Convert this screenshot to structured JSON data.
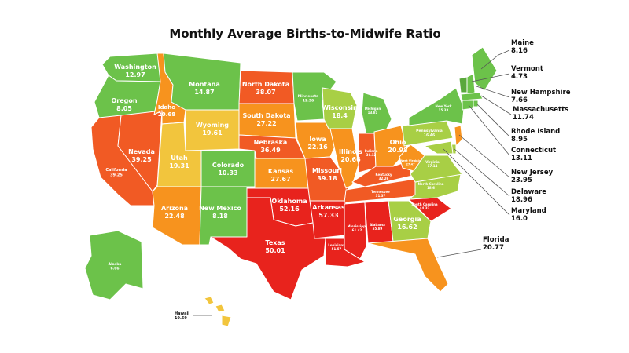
{
  "title": "Monthly Average Births-to-Midwife Ratio",
  "colors": {
    "low": "#6cc24a",
    "midlow": "#a8cf45",
    "mid": "#f2c53d",
    "midhigh": "#f7931e",
    "high": "#f15a24",
    "max": "#e8231d"
  },
  "chart_data": {
    "type": "choropleth",
    "title": "Monthly Average Births-to-Midwife Ratio",
    "states": [
      {
        "name": "Washington",
        "value": "12.97"
      },
      {
        "name": "Oregon",
        "value": "8.05"
      },
      {
        "name": "California",
        "value": "39.25"
      },
      {
        "name": "Nevada",
        "value": "39.25"
      },
      {
        "name": "Idaho",
        "value": "20.68"
      },
      {
        "name": "Montana",
        "value": "14.87"
      },
      {
        "name": "Wyoming",
        "value": "19.61"
      },
      {
        "name": "Utah",
        "value": "19.31"
      },
      {
        "name": "Arizona",
        "value": "22.48"
      },
      {
        "name": "Colorado",
        "value": "10.33"
      },
      {
        "name": "New Mexico",
        "value": "8.18"
      },
      {
        "name": "North Dakota",
        "value": "38.07"
      },
      {
        "name": "South Dakota",
        "value": "27.22"
      },
      {
        "name": "Nebraska",
        "value": "36.49"
      },
      {
        "name": "Kansas",
        "value": "27.67"
      },
      {
        "name": "Oklahoma",
        "value": "52.16"
      },
      {
        "name": "Texas",
        "value": "50.01"
      },
      {
        "name": "Minnesota",
        "value": "12.36"
      },
      {
        "name": "Iowa",
        "value": "22.16"
      },
      {
        "name": "Missouri",
        "value": "39.18"
      },
      {
        "name": "Arkansas",
        "value": "57.33"
      },
      {
        "name": "Louisiana",
        "value": "51.57"
      },
      {
        "name": "Wisconsin",
        "value": "18.4"
      },
      {
        "name": "Illinois",
        "value": "20.66"
      },
      {
        "name": "Michigan",
        "value": "13.81"
      },
      {
        "name": "Indiana",
        "value": "36.12"
      },
      {
        "name": "Ohio",
        "value": "20.98"
      },
      {
        "name": "Kentucky",
        "value": "32.26"
      },
      {
        "name": "Tennessee",
        "value": "31.37"
      },
      {
        "name": "Mississippi",
        "value": "61.42"
      },
      {
        "name": "Alabama",
        "value": "55.89"
      },
      {
        "name": "Georgia",
        "value": "16.62"
      },
      {
        "name": "Florida",
        "value": "20.77"
      },
      {
        "name": "South Carolina",
        "value": "44.32"
      },
      {
        "name": "North Carolina",
        "value": "18.6"
      },
      {
        "name": "Virginia",
        "value": "17.14"
      },
      {
        "name": "West Virginia",
        "value": "27.47"
      },
      {
        "name": "Pennsylvania",
        "value": "16.46"
      },
      {
        "name": "New York",
        "value": "15.33"
      },
      {
        "name": "Maine",
        "value": "8.16"
      },
      {
        "name": "Vermont",
        "value": "4.73"
      },
      {
        "name": "New Hampshire",
        "value": "7.66"
      },
      {
        "name": "Massachusetts",
        "value": "11.74"
      },
      {
        "name": "Rhode Island",
        "value": "8.95"
      },
      {
        "name": "Connecticut",
        "value": "13.11"
      },
      {
        "name": "New Jersey",
        "value": "23.95"
      },
      {
        "name": "Delaware",
        "value": "18.96"
      },
      {
        "name": "Maryland",
        "value": "16.0"
      },
      {
        "name": "Alaska",
        "value": "6.66"
      },
      {
        "name": "Hawaii",
        "value": "19.69"
      }
    ]
  }
}
